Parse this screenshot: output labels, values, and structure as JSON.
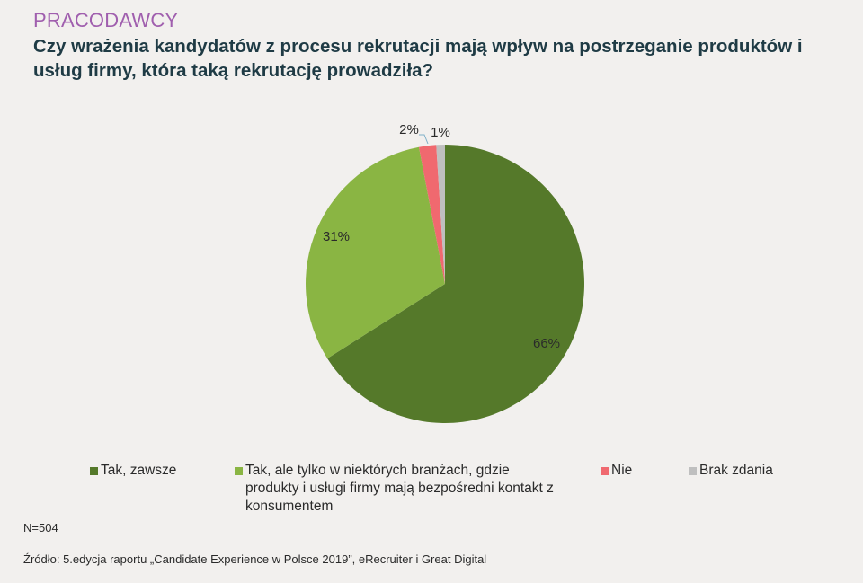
{
  "header": {
    "section": "PRACODAWCY",
    "title": "Czy wrażenia kandydatów z procesu rekrutacji mają wpływ na postrzeganie produktów i usług firmy, która taką rekrutację prowadziła?"
  },
  "chart_data": {
    "type": "pie",
    "title": "Czy wrażenia kandydatów z procesu rekrutacji mają wpływ na postrzeganie produktów i usług firmy, która taką rekrutację prowadziła?",
    "categories": [
      "Tak, zawsze",
      "Tak, ale tylko w niektórych branżach, gdzie produkty i usługi firmy mają bezpośredni kontakt z konsumentem",
      "Nie",
      "Brak zdania"
    ],
    "values": [
      66,
      31,
      2,
      1
    ],
    "labels": [
      "66%",
      "31%",
      "2%",
      "1%"
    ],
    "colors": [
      "#55792a",
      "#8ab543",
      "#f0696f",
      "#bfbfbf"
    ],
    "legend_position": "bottom"
  },
  "footer": {
    "n": "N=504",
    "source": "Źródło: 5.edycja raportu „Candidate Experience w Polsce 2019”, eRecruiter i Great Digital"
  }
}
